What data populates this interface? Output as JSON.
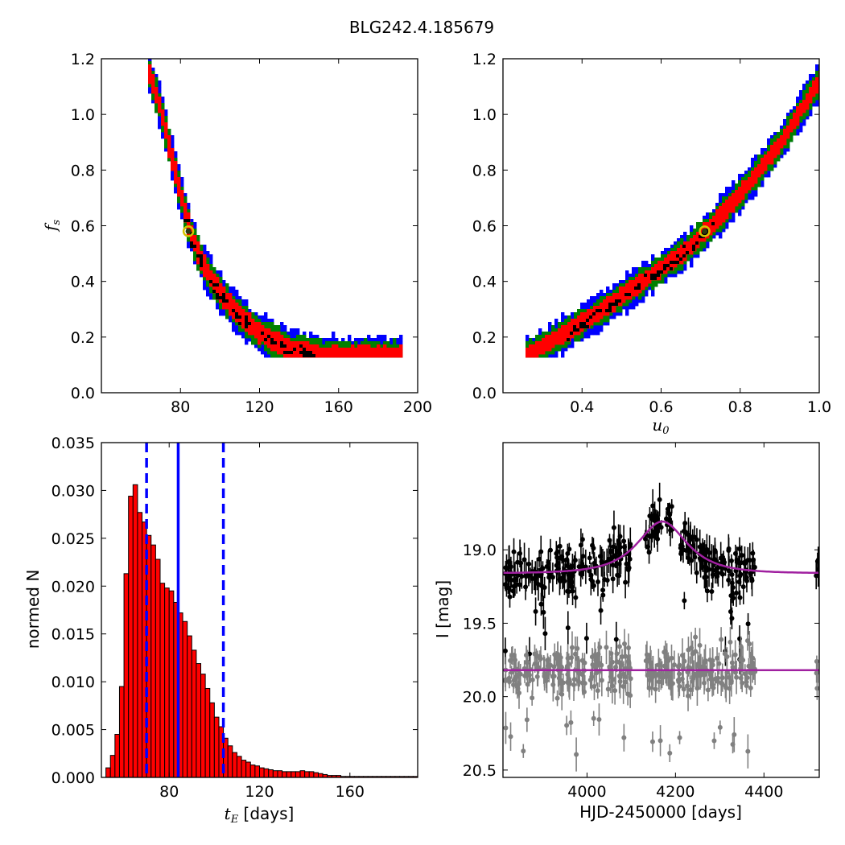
{
  "figure_title": "BLG242.4.185679",
  "colors": {
    "sigma3": "#0000ff",
    "sigma2": "#008000",
    "sigma1": "#ff0000",
    "samples": "#000000",
    "best_fit_marker": "#d4c400",
    "hist_bar": "#ff0000",
    "hist_lines": "#0000ff",
    "model": "#a020a0",
    "data_black": "#000000",
    "data_grey": "#808080"
  },
  "chart_data": [
    {
      "type": "heatmap",
      "panel": "top-left",
      "xlabel": "",
      "ylabel": "f_s",
      "xlim": [
        40,
        200
      ],
      "ylim": [
        0.0,
        1.2
      ],
      "xticks": [
        "80",
        "120",
        "160",
        "200"
      ],
      "yticks": [
        "0.0",
        "0.2",
        "0.4",
        "0.6",
        "0.8",
        "1.0",
        "1.2"
      ],
      "relation": "f_s decreases with t_E along a curved band",
      "band_center": [
        [
          62,
          1.18
        ],
        [
          68,
          1.05
        ],
        [
          73,
          0.9
        ],
        [
          78,
          0.75
        ],
        [
          84,
          0.58
        ],
        [
          90,
          0.47
        ],
        [
          97,
          0.38
        ],
        [
          106,
          0.3
        ],
        [
          118,
          0.22
        ],
        [
          133,
          0.16
        ],
        [
          150,
          0.135
        ],
        [
          175,
          0.13
        ],
        [
          192,
          0.13
        ]
      ],
      "best_fit": {
        "x": 84,
        "y": 0.58
      },
      "levels": [
        "3 sigma",
        "2 sigma",
        "1 sigma",
        "samples"
      ]
    },
    {
      "type": "heatmap",
      "panel": "top-right",
      "xlabel": "u_0",
      "ylabel": "",
      "xlim": [
        0.2,
        1.0
      ],
      "ylim": [
        0.0,
        1.2
      ],
      "xticks": [
        "0.4",
        "0.6",
        "0.8",
        "1.0"
      ],
      "yticks": [
        "0.0",
        "0.2",
        "0.4",
        "0.6",
        "0.8",
        "1.0",
        "1.2"
      ],
      "relation": "f_s increases with u_0 along a narrow band",
      "band_center": [
        [
          0.25,
          0.13
        ],
        [
          0.35,
          0.21
        ],
        [
          0.45,
          0.3
        ],
        [
          0.55,
          0.4
        ],
        [
          0.65,
          0.5
        ],
        [
          0.71,
          0.58
        ],
        [
          0.8,
          0.72
        ],
        [
          0.9,
          0.9
        ],
        [
          1.0,
          1.13
        ]
      ],
      "best_fit": {
        "x": 0.71,
        "y": 0.58
      },
      "levels": [
        "3 sigma",
        "2 sigma",
        "1 sigma",
        "samples"
      ]
    },
    {
      "type": "bar",
      "panel": "bottom-left",
      "xlabel": "t_E [days]",
      "ylabel": "normed N",
      "xlim": [
        50,
        190
      ],
      "ylim": [
        0.0,
        0.035
      ],
      "xticks": [
        "80",
        "120",
        "160"
      ],
      "yticks": [
        "0.000",
        "0.005",
        "0.010",
        "0.015",
        "0.020",
        "0.025",
        "0.030",
        "0.035"
      ],
      "bin_width": 2,
      "bin_start": 52,
      "values": [
        0.001,
        0.0023,
        0.0045,
        0.0095,
        0.0213,
        0.0294,
        0.0306,
        0.0277,
        0.0267,
        0.0253,
        0.0243,
        0.0228,
        0.0203,
        0.0198,
        0.0195,
        0.0183,
        0.0172,
        0.0163,
        0.0148,
        0.0133,
        0.0119,
        0.0108,
        0.0093,
        0.0078,
        0.0063,
        0.0053,
        0.0041,
        0.0033,
        0.0026,
        0.0022,
        0.0018,
        0.0016,
        0.0013,
        0.0012,
        0.001,
        0.0009,
        0.0008,
        0.0007,
        0.0007,
        0.0006,
        0.0006,
        0.0006,
        0.0006,
        0.0007,
        0.0006,
        0.0006,
        0.0005,
        0.0004,
        0.0003,
        0.0002,
        0.0002,
        0.0002,
        0.0001,
        0.0001,
        0.0001,
        0.0001,
        0.0001,
        0.0001,
        0.0001,
        0.0001,
        0.0001,
        0.0001,
        0.0001,
        0.0001,
        0.0001,
        0.0001,
        0.0001,
        0.0001,
        0.0001
      ],
      "vlines": [
        {
          "x": 70,
          "style": "dashed"
        },
        {
          "x": 84,
          "style": "solid"
        },
        {
          "x": 104,
          "style": "dashed"
        }
      ]
    },
    {
      "type": "scatter",
      "panel": "bottom-right",
      "xlabel": "HJD-2450000 [days]",
      "ylabel": "I [mag]",
      "xlim": [
        3810,
        4525
      ],
      "ylim": [
        20.55,
        18.27
      ],
      "y_inverted": true,
      "xticks": [
        "4000",
        "4200",
        "4400"
      ],
      "yticks": [
        "19.0",
        "19.5",
        "20.0",
        "20.5"
      ],
      "series": [
        {
          "color": "black",
          "baseline_mag": 19.15,
          "scatter": 0.08,
          "seasons": [
            [
              3815,
              4000
            ],
            [
              4005,
              4100
            ],
            [
              4130,
              4380
            ],
            [
              4518,
              4525
            ]
          ]
        },
        {
          "color": "grey",
          "baseline_mag": 19.82,
          "scatter": 0.08,
          "seasons": [
            [
              3815,
              4000
            ],
            [
              4005,
              4100
            ],
            [
              4130,
              4380
            ],
            [
              4518,
              4525
            ]
          ]
        }
      ],
      "model_curves": [
        {
          "t0": 4170,
          "tE": 84,
          "u0": 0.71,
          "fs": 0.58,
          "baseline_mag": 19.16
        },
        {
          "flat_mag": 19.82
        }
      ]
    }
  ]
}
